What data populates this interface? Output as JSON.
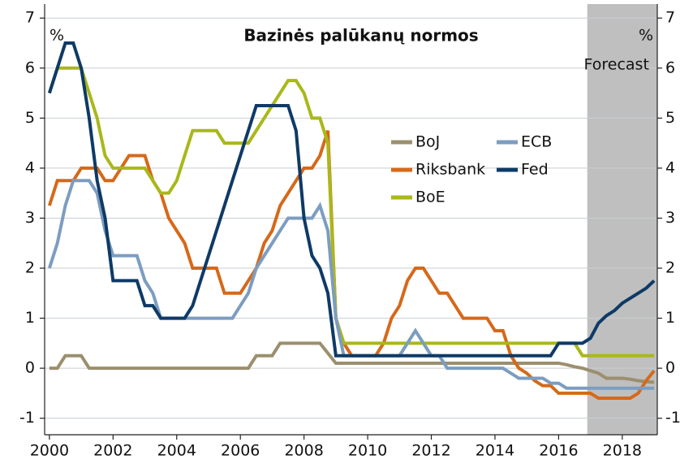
{
  "chart_data": {
    "type": "line",
    "title": "Bazinės palūkanų normos",
    "y_label": "%",
    "y2_label": "%",
    "shaded_region": {
      "label": "Forecast",
      "x": [
        2016.9,
        2019.1
      ],
      "color": "#bfbfbf"
    },
    "xlim": [
      1999.85,
      2019.1
    ],
    "xticks": [
      2000,
      2002,
      2004,
      2006,
      2008,
      2010,
      2012,
      2014,
      2016,
      2018
    ],
    "ylim": [
      -1.33,
      7.28
    ],
    "yticks": [
      -1,
      0,
      1,
      2,
      3,
      4,
      5,
      6,
      7
    ],
    "y2lim": [
      -1.33,
      7.28
    ],
    "y2ticks": [
      -1,
      0,
      1,
      2,
      3,
      4,
      5,
      6,
      7
    ],
    "grid": true,
    "legend": "center-right",
    "x": [
      2000,
      2000.25,
      2000.5,
      2000.75,
      2001,
      2001.25,
      2001.5,
      2001.75,
      2002,
      2002.25,
      2002.5,
      2002.75,
      2003,
      2003.25,
      2003.5,
      2003.75,
      2004,
      2004.25,
      2004.5,
      2004.75,
      2005,
      2005.25,
      2005.5,
      2005.75,
      2006,
      2006.25,
      2006.5,
      2006.75,
      2007,
      2007.25,
      2007.5,
      2007.75,
      2008,
      2008.25,
      2008.5,
      2008.75,
      2009,
      2009.25,
      2009.5,
      2009.75,
      2010,
      2010.25,
      2010.5,
      2010.75,
      2011,
      2011.25,
      2011.5,
      2011.75,
      2012,
      2012.25,
      2012.5,
      2012.75,
      2013,
      2013.25,
      2013.5,
      2013.75,
      2014,
      2014.25,
      2014.5,
      2014.75,
      2015,
      2015.25,
      2015.5,
      2015.75,
      2016,
      2016.25,
      2016.5,
      2016.75,
      2017,
      2017.25,
      2017.5,
      2017.75,
      2018,
      2018.25,
      2018.5,
      2018.75,
      2019
    ],
    "series": [
      {
        "name": "BoJ",
        "color": "#9b8f6e",
        "values": [
          0,
          0,
          0.25,
          0.25,
          0.25,
          0,
          0,
          0,
          0,
          0,
          0,
          0,
          0,
          0,
          0,
          0,
          0,
          0,
          0,
          0,
          0,
          0,
          0,
          0,
          0,
          0,
          0.25,
          0.25,
          0.25,
          0.5,
          0.5,
          0.5,
          0.5,
          0.5,
          0.5,
          0.3,
          0.1,
          0.1,
          0.1,
          0.1,
          0.1,
          0.1,
          0.1,
          0.1,
          0.1,
          0.1,
          0.1,
          0.1,
          0.1,
          0.1,
          0.1,
          0.1,
          0.1,
          0.1,
          0.1,
          0.1,
          0.1,
          0.1,
          0.1,
          0.1,
          0.1,
          0.1,
          0.1,
          0.1,
          0.1,
          0.07,
          0.03,
          0,
          -0.05,
          -0.1,
          -0.2,
          -0.2,
          -0.2,
          -0.22,
          -0.25,
          -0.27,
          -0.28
        ]
      },
      {
        "name": "Riksbank",
        "color": "#d5691a",
        "values": [
          3.25,
          3.75,
          3.75,
          3.75,
          4,
          4,
          4,
          3.75,
          3.75,
          4,
          4.25,
          4.25,
          4.25,
          3.75,
          3.5,
          3,
          2.75,
          2.5,
          2,
          2,
          2,
          2,
          1.5,
          1.5,
          1.5,
          1.75,
          2,
          2.5,
          2.75,
          3.25,
          3.5,
          3.75,
          4,
          4,
          4.25,
          4.75,
          1,
          0.5,
          0.25,
          0.25,
          0.25,
          0.25,
          0.5,
          1,
          1.25,
          1.75,
          2,
          2,
          1.75,
          1.5,
          1.5,
          1.25,
          1,
          1,
          1,
          1,
          0.75,
          0.75,
          0.25,
          0,
          -0.1,
          -0.25,
          -0.35,
          -0.35,
          -0.5,
          -0.5,
          -0.5,
          -0.5,
          -0.5,
          -0.6,
          -0.6,
          -0.6,
          -0.6,
          -0.6,
          -0.5,
          -0.25,
          -0.05
        ]
      },
      {
        "name": "BoE",
        "color": "#a9b81a",
        "values": [
          5.5,
          6,
          6,
          6,
          6,
          5.5,
          5,
          4.25,
          4,
          4,
          4,
          4,
          4,
          3.75,
          3.5,
          3.5,
          3.75,
          4.25,
          4.75,
          4.75,
          4.75,
          4.75,
          4.5,
          4.5,
          4.5,
          4.5,
          4.75,
          5,
          5.25,
          5.5,
          5.75,
          5.75,
          5.5,
          5,
          5,
          4.5,
          1,
          0.5,
          0.5,
          0.5,
          0.5,
          0.5,
          0.5,
          0.5,
          0.5,
          0.5,
          0.5,
          0.5,
          0.5,
          0.5,
          0.5,
          0.5,
          0.5,
          0.5,
          0.5,
          0.5,
          0.5,
          0.5,
          0.5,
          0.5,
          0.5,
          0.5,
          0.5,
          0.5,
          0.5,
          0.5,
          0.5,
          0.25,
          0.25,
          0.25,
          0.25,
          0.25,
          0.25,
          0.25,
          0.25,
          0.25,
          0.25
        ]
      },
      {
        "name": "ECB",
        "color": "#7c9dc0",
        "values": [
          2,
          2.5,
          3.25,
          3.75,
          3.75,
          3.75,
          3.5,
          2.75,
          2.25,
          2.25,
          2.25,
          2.25,
          1.75,
          1.5,
          1,
          1,
          1,
          1,
          1,
          1,
          1,
          1,
          1,
          1,
          1.25,
          1.5,
          2,
          2.25,
          2.5,
          2.75,
          3,
          3,
          3,
          3,
          3.25,
          2.75,
          1,
          0.25,
          0.25,
          0.25,
          0.25,
          0.25,
          0.25,
          0.25,
          0.25,
          0.5,
          0.75,
          0.5,
          0.25,
          0.25,
          0,
          0,
          0,
          0,
          0,
          0,
          0,
          0,
          -0.1,
          -0.2,
          -0.2,
          -0.2,
          -0.2,
          -0.3,
          -0.3,
          -0.4,
          -0.4,
          -0.4,
          -0.4,
          -0.4,
          -0.4,
          -0.4,
          -0.4,
          -0.4,
          -0.4,
          -0.4,
          -0.4
        ]
      },
      {
        "name": "Fed",
        "color": "#0e3a66",
        "values": [
          5.5,
          6,
          6.5,
          6.5,
          6,
          5,
          3.75,
          3,
          1.75,
          1.75,
          1.75,
          1.75,
          1.25,
          1.25,
          1,
          1,
          1,
          1,
          1.25,
          1.75,
          2.25,
          2.75,
          3.25,
          3.75,
          4.25,
          4.75,
          5.25,
          5.25,
          5.25,
          5.25,
          5.25,
          4.75,
          3,
          2.25,
          2,
          1.5,
          0.25,
          0.25,
          0.25,
          0.25,
          0.25,
          0.25,
          0.25,
          0.25,
          0.25,
          0.25,
          0.25,
          0.25,
          0.25,
          0.25,
          0.25,
          0.25,
          0.25,
          0.25,
          0.25,
          0.25,
          0.25,
          0.25,
          0.25,
          0.25,
          0.25,
          0.25,
          0.25,
          0.25,
          0.5,
          0.5,
          0.5,
          0.5,
          0.6,
          0.9,
          1.05,
          1.15,
          1.3,
          1.4,
          1.5,
          1.6,
          1.75
        ]
      }
    ]
  }
}
